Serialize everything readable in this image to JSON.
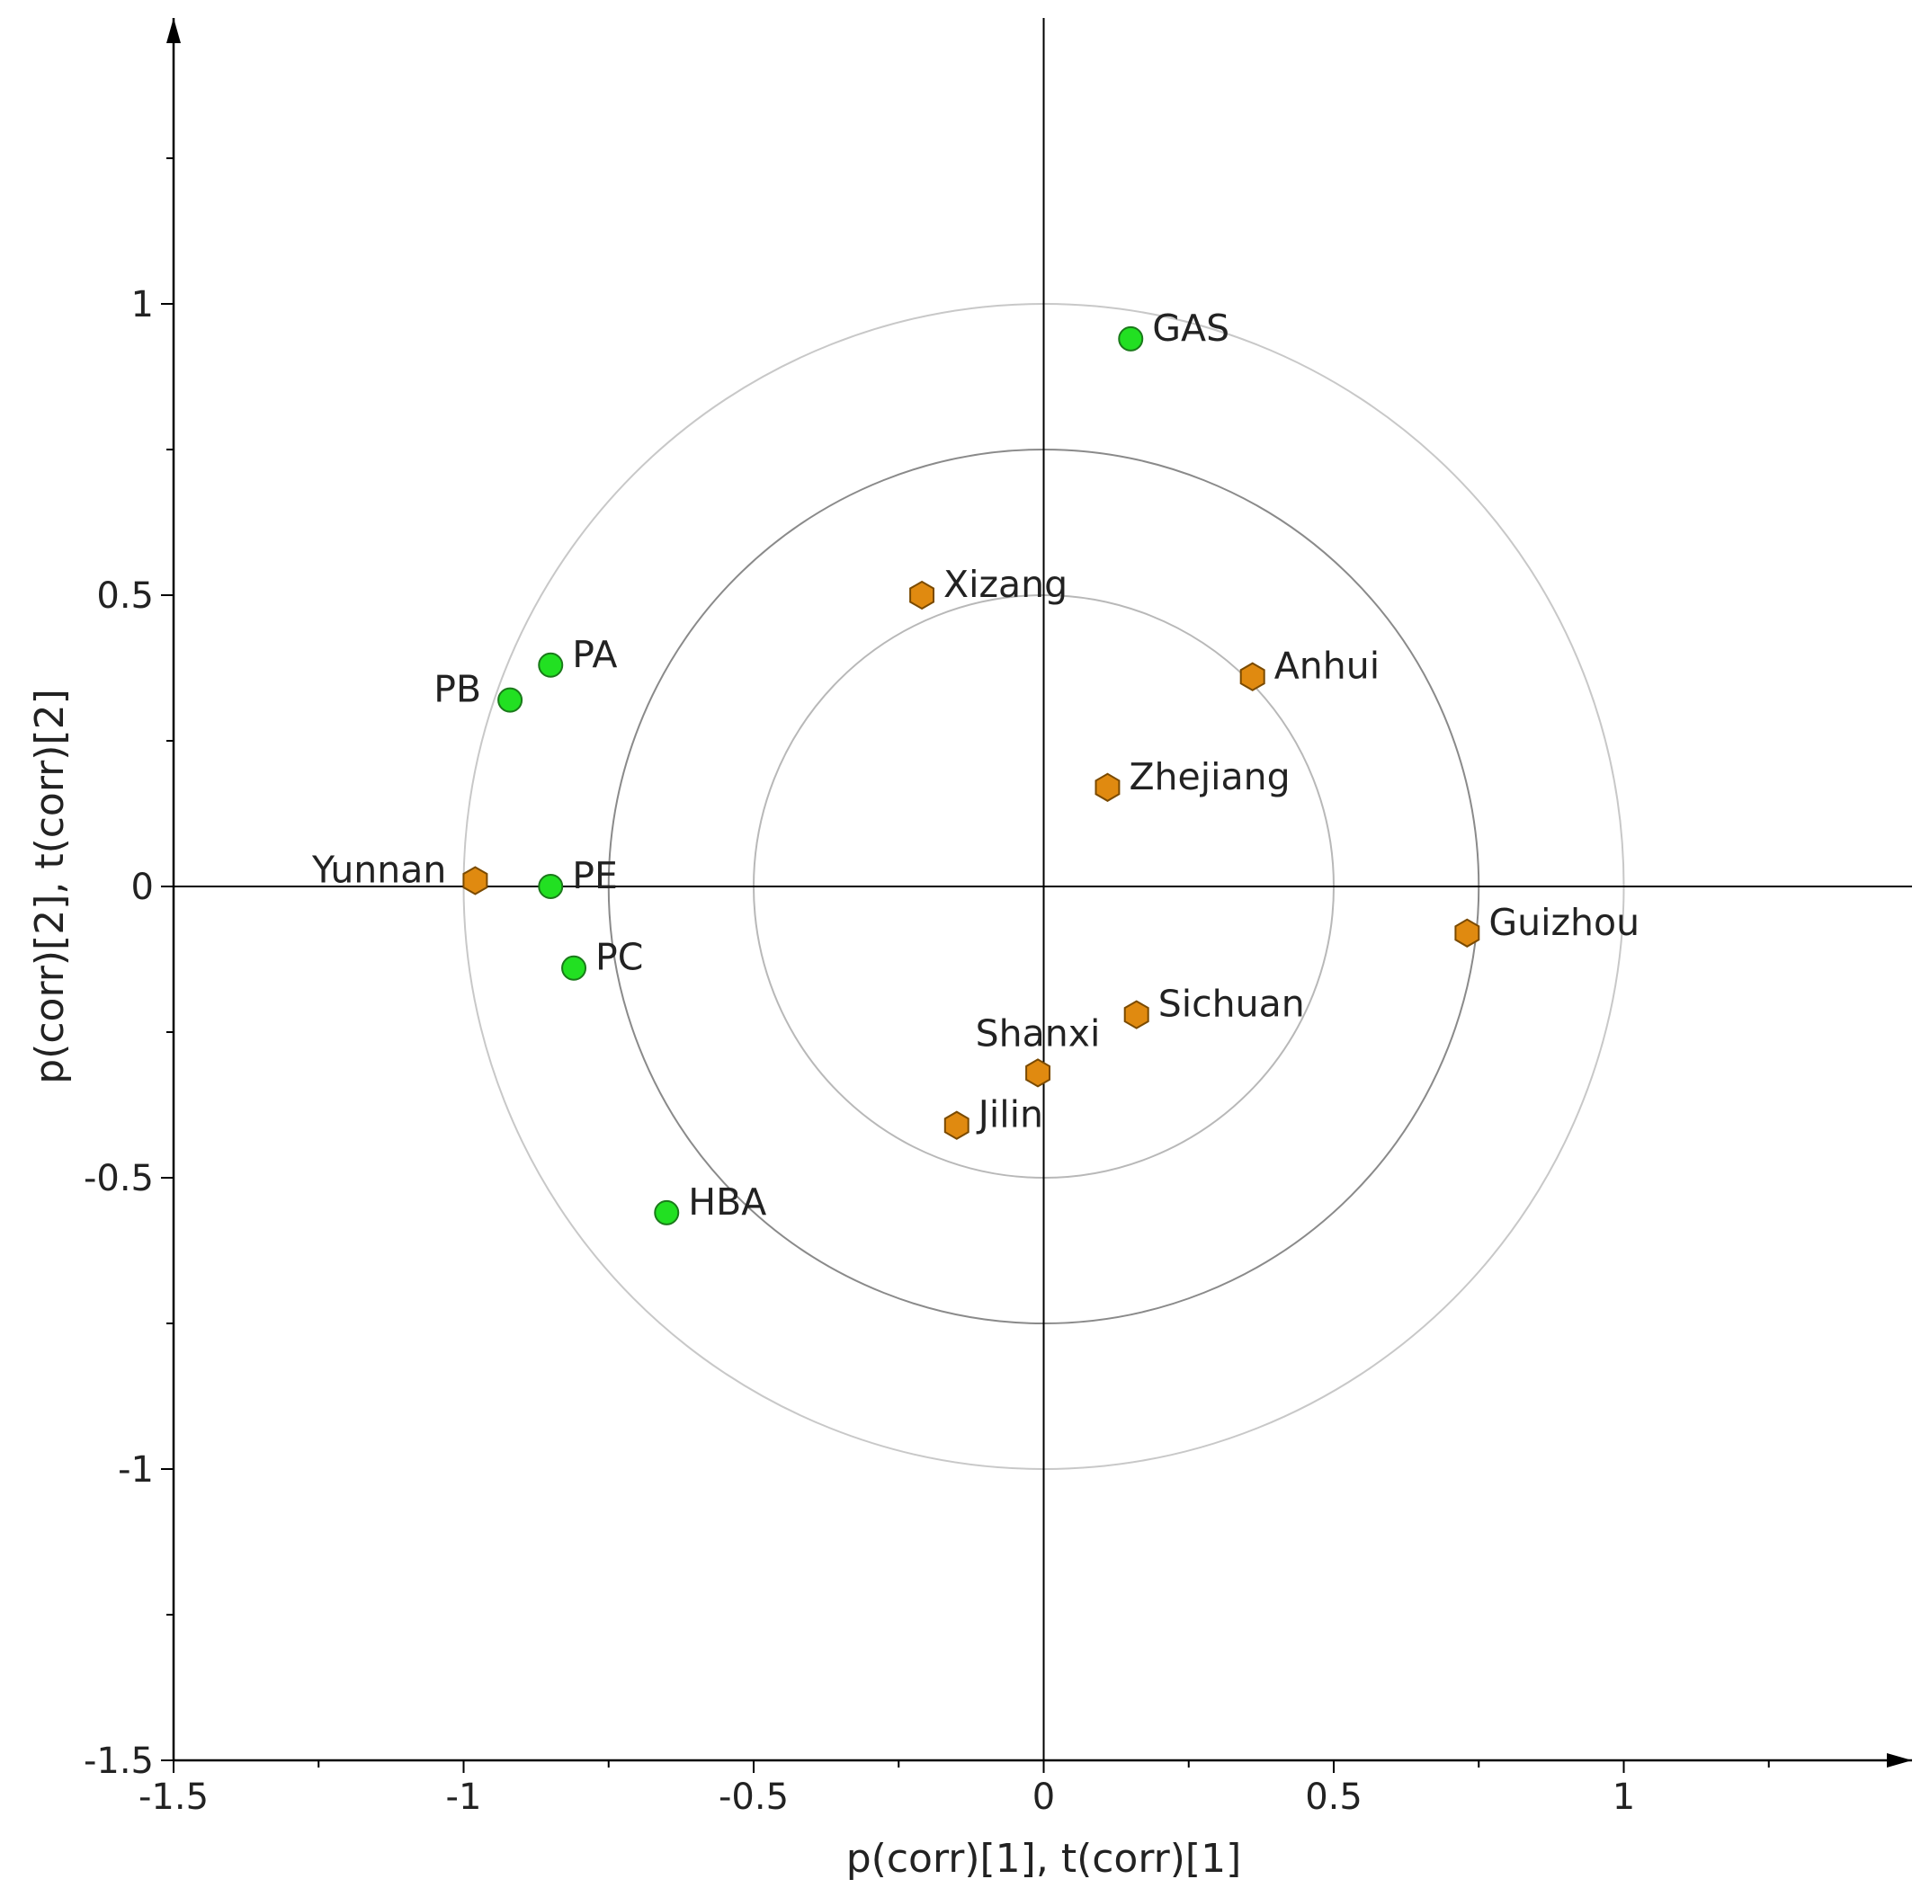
{
  "chart_data": {
    "type": "scatter",
    "title": "",
    "xlabel": "p(corr)[1], t(corr)[1]",
    "ylabel": "p(corr)[2], t(corr)[2]",
    "xlim": [
      -1.5,
      1.5
    ],
    "ylim": [
      -1.5,
      1.5
    ],
    "x_ticks": [
      -1.5,
      -1,
      -0.5,
      0,
      0.5,
      1
    ],
    "y_ticks": [
      -1.5,
      -1,
      -0.5,
      0,
      0.5,
      1
    ],
    "x_tick_labels": [
      "-1.5",
      "-1",
      "-0.5",
      "0",
      "0.5",
      "1"
    ],
    "y_tick_labels": [
      "-1.5",
      "-1",
      "-0.5",
      "0",
      "0.5",
      "1"
    ],
    "circles_radii": [
      0.5,
      0.75,
      1.0
    ],
    "series": [
      {
        "name": "loadings",
        "marker": "circle",
        "color": "#22e022",
        "points": [
          {
            "label": "GAS",
            "x": 0.15,
            "y": 0.94,
            "label_pos": "right"
          },
          {
            "label": "PA",
            "x": -0.85,
            "y": 0.38,
            "label_pos": "right"
          },
          {
            "label": "PB",
            "x": -0.92,
            "y": 0.32,
            "label_pos": "left"
          },
          {
            "label": "PE",
            "x": -0.85,
            "y": 0.0,
            "label_pos": "right"
          },
          {
            "label": "PC",
            "x": -0.81,
            "y": -0.14,
            "label_pos": "right"
          },
          {
            "label": "HBA",
            "x": -0.65,
            "y": -0.56,
            "label_pos": "right"
          }
        ]
      },
      {
        "name": "scores",
        "marker": "hexagon",
        "color": "#e08a10",
        "points": [
          {
            "label": "Xizang",
            "x": -0.21,
            "y": 0.5,
            "label_pos": "right"
          },
          {
            "label": "Anhui",
            "x": 0.36,
            "y": 0.36,
            "label_pos": "right"
          },
          {
            "label": "Zhejiang",
            "x": 0.11,
            "y": 0.17,
            "label_pos": "right"
          },
          {
            "label": "Yunnan",
            "x": -0.98,
            "y": 0.01,
            "label_pos": "left"
          },
          {
            "label": "Guizhou",
            "x": 0.73,
            "y": -0.08,
            "label_pos": "right"
          },
          {
            "label": "Sichuan",
            "x": 0.16,
            "y": -0.22,
            "label_pos": "right"
          },
          {
            "label": "Shanxi",
            "x": -0.01,
            "y": -0.32,
            "label_pos": "above"
          },
          {
            "label": "Jilin",
            "x": -0.15,
            "y": -0.41,
            "label_pos": "right"
          }
        ]
      }
    ]
  }
}
